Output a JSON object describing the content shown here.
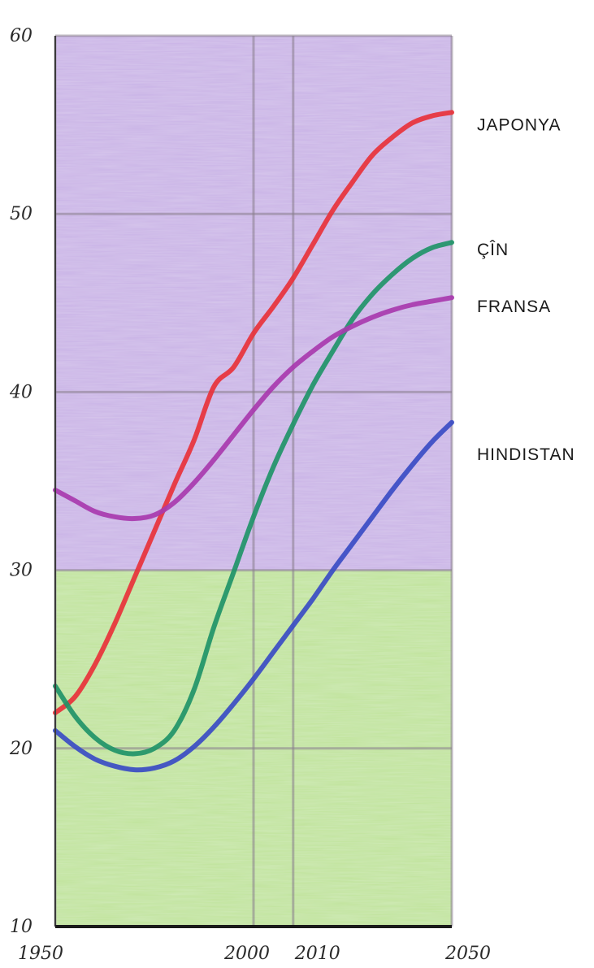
{
  "chart_data": {
    "type": "line",
    "title": "",
    "xlabel": "",
    "ylabel": "",
    "xlim": [
      1950,
      2050
    ],
    "ylim": [
      10,
      60
    ],
    "x_ticks": [
      1950,
      2000,
      2010,
      2050
    ],
    "x_tick_labels": [
      "1950",
      "2000",
      "2010",
      "2050"
    ],
    "y_ticks": [
      10,
      20,
      30,
      40,
      50,
      60
    ],
    "y_tick_labels": [
      "10",
      "20",
      "30",
      "40",
      "50",
      "60"
    ],
    "grid": true,
    "background_bands": [
      {
        "from": 10,
        "to": 30,
        "color": "#bfe39a"
      },
      {
        "from": 30,
        "to": 60,
        "color": "#c9b2e6"
      }
    ],
    "series": [
      {
        "name": "JAPONYA",
        "color": "#e8323a",
        "x": [
          1950,
          1955,
          1960,
          1965,
          1970,
          1975,
          1980,
          1985,
          1990,
          1995,
          2000,
          2005,
          2010,
          2015,
          2020,
          2025,
          2030,
          2035,
          2040,
          2045,
          2050
        ],
        "y": [
          22.0,
          22.9,
          24.7,
          27.0,
          29.6,
          32.2,
          34.8,
          37.3,
          40.3,
          41.4,
          43.3,
          44.8,
          46.4,
          48.3,
          50.2,
          51.8,
          53.3,
          54.3,
          55.1,
          55.5,
          55.7
        ]
      },
      {
        "name": "ÇÎN",
        "color": "#1f9468",
        "x": [
          1950,
          1955,
          1960,
          1965,
          1970,
          1975,
          1980,
          1985,
          1990,
          1995,
          2000,
          2005,
          2010,
          2015,
          2020,
          2025,
          2030,
          2035,
          2040,
          2045,
          2050
        ],
        "y": [
          23.5,
          21.8,
          20.6,
          19.9,
          19.7,
          20.0,
          21.0,
          23.3,
          26.8,
          29.9,
          33.0,
          35.8,
          38.2,
          40.4,
          42.3,
          44.1,
          45.5,
          46.6,
          47.5,
          48.1,
          48.4
        ]
      },
      {
        "name": "FRANSA",
        "color": "#a83aae",
        "x": [
          1950,
          1955,
          1960,
          1965,
          1970,
          1975,
          1980,
          1985,
          1990,
          1995,
          2000,
          2005,
          2010,
          2015,
          2020,
          2025,
          2030,
          2035,
          2040,
          2045,
          2050
        ],
        "y": [
          34.5,
          33.9,
          33.3,
          33.0,
          32.9,
          33.1,
          33.8,
          34.9,
          36.2,
          37.6,
          39.0,
          40.3,
          41.4,
          42.3,
          43.1,
          43.7,
          44.2,
          44.6,
          44.9,
          45.1,
          45.3
        ]
      },
      {
        "name": "HINDISTAN",
        "color": "#3a4cc4",
        "x": [
          1950,
          1955,
          1960,
          1965,
          1970,
          1975,
          1980,
          1985,
          1990,
          1995,
          2000,
          2005,
          2010,
          2015,
          2020,
          2025,
          2030,
          2035,
          2040,
          2045,
          2050
        ],
        "y": [
          21.0,
          20.1,
          19.4,
          19.0,
          18.8,
          18.9,
          19.3,
          20.1,
          21.2,
          22.5,
          23.9,
          25.4,
          26.9,
          28.4,
          30.0,
          31.5,
          33.0,
          34.5,
          35.9,
          37.2,
          38.3
        ]
      }
    ],
    "series_label_values": [
      55.0,
      48.0,
      44.8,
      36.5
    ]
  }
}
